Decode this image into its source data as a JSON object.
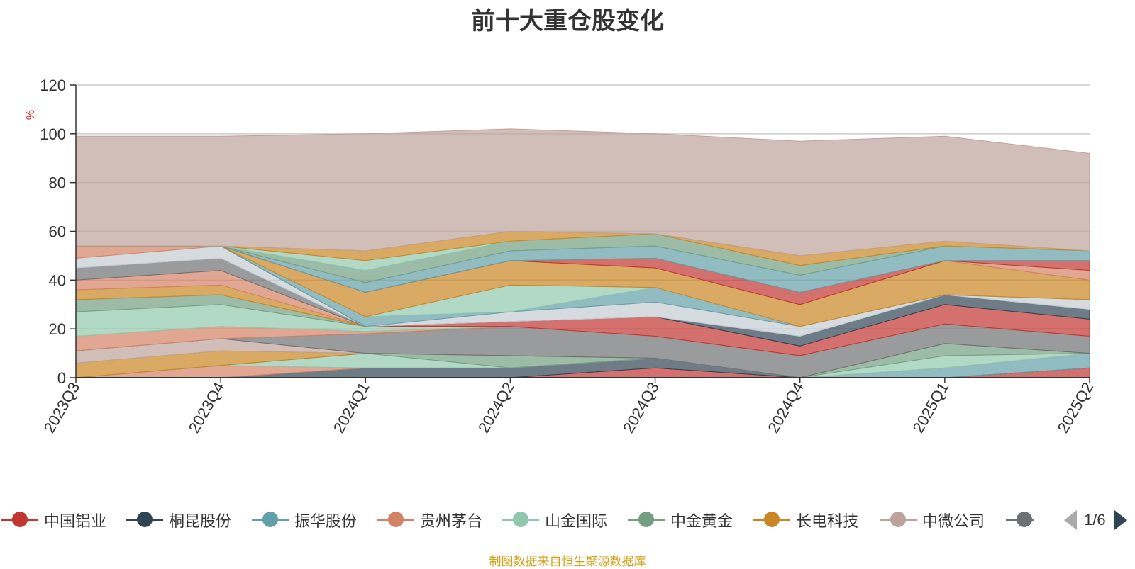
{
  "chart_data": {
    "type": "area",
    "title": "前十大重仓股变化",
    "ylabel": "%",
    "ylim": [
      0,
      120
    ],
    "yticks": [
      0,
      20,
      40,
      60,
      80,
      100,
      120
    ],
    "grid": true,
    "stacked": true,
    "legend_placement": "bottom",
    "categories": [
      "2023Q3",
      "2023Q4",
      "2024Q1",
      "2024Q2",
      "2024Q3",
      "2024Q4",
      "2025Q1",
      "2025Q2"
    ],
    "series": [
      {
        "name": "中国铝业",
        "color": "#c23531",
        "values": [
          0,
          0,
          0,
          0,
          4,
          0,
          0,
          4
        ]
      },
      {
        "name": "桐昆股份",
        "color": "#2f4554",
        "values": [
          0,
          0,
          4,
          4,
          4,
          0,
          0,
          0
        ]
      },
      {
        "name": "振华股份",
        "color": "#61a0a8",
        "values": [
          0,
          0,
          0,
          0,
          0,
          0,
          4,
          6
        ]
      },
      {
        "name": "贵州茅台",
        "color": "#d48265",
        "values": [
          0,
          5,
          0,
          0,
          0,
          0,
          0,
          0
        ]
      },
      {
        "name": "山金国际",
        "color": "#91c7ae",
        "values": [
          0,
          0,
          6,
          0,
          0,
          0,
          5,
          0
        ]
      },
      {
        "name": "中金黄金",
        "color": "#749f83",
        "values": [
          0,
          0,
          0,
          5,
          0,
          0,
          5,
          0
        ]
      },
      {
        "name": "长电科技",
        "color": "#ca8622",
        "values": [
          6,
          6,
          0,
          0,
          0,
          0,
          0,
          0
        ]
      },
      {
        "name": "中微公司",
        "color": "#bda29a",
        "values": [
          5,
          5,
          0,
          0,
          0,
          0,
          0,
          0
        ]
      },
      {
        "color": "#6e7074",
        "values": [
          0,
          0,
          8,
          12,
          9,
          9,
          8,
          7
        ]
      },
      {
        "color": "#d48265",
        "values": [
          6,
          5,
          1,
          0,
          0,
          0,
          0,
          0
        ]
      },
      {
        "color": "#91c7ae",
        "values": [
          10,
          9,
          2,
          0,
          0,
          0,
          0,
          0
        ]
      },
      {
        "color": "#749f83",
        "values": [
          5,
          4,
          0,
          0,
          0,
          0,
          0,
          0
        ]
      },
      {
        "color": "#ca8622",
        "values": [
          4,
          4,
          0,
          0,
          0,
          0,
          0,
          0
        ]
      },
      {
        "color": "#d48265",
        "values": [
          4,
          6,
          0,
          0,
          0,
          0,
          0,
          0
        ]
      },
      {
        "color": "#6e7074",
        "values": [
          5,
          5,
          0,
          0,
          0,
          0,
          0,
          0
        ]
      },
      {
        "color": "#c4ccd3",
        "values": [
          4,
          5,
          0,
          0,
          0,
          0,
          0,
          0
        ]
      },
      {
        "color": "#d48265",
        "values": [
          5,
          0,
          0,
          0,
          0,
          0,
          0,
          0
        ]
      },
      {
        "color": "#c23531",
        "values": [
          0,
          0,
          0,
          2,
          8,
          4,
          8,
          7
        ]
      },
      {
        "color": "#2f4554",
        "values": [
          0,
          0,
          0,
          0,
          0,
          4,
          4,
          4
        ]
      },
      {
        "color": "#c4ccd3",
        "values": [
          0,
          0,
          0,
          4,
          6,
          4,
          0,
          4
        ]
      },
      {
        "color": "#61a0a8",
        "values": [
          0,
          0,
          4,
          0,
          6,
          0,
          0,
          0
        ]
      },
      {
        "color": "#91c7ae",
        "values": [
          0,
          0,
          0,
          11,
          0,
          0,
          0,
          0
        ]
      },
      {
        "color": "#ca8622",
        "values": [
          0,
          0,
          10,
          10,
          8,
          9,
          14,
          8
        ]
      },
      {
        "color": "#d48265",
        "values": [
          0,
          0,
          0,
          0,
          0,
          0,
          0,
          4
        ]
      },
      {
        "color": "#c23531",
        "values": [
          0,
          0,
          0,
          0,
          4,
          5,
          0,
          4
        ]
      },
      {
        "color": "#61a0a8",
        "values": [
          0,
          0,
          4,
          4,
          5,
          7,
          6,
          4
        ]
      },
      {
        "color": "#749f83",
        "values": [
          0,
          0,
          5,
          4,
          5,
          4,
          0,
          0
        ]
      },
      {
        "color": "#91c7ae",
        "values": [
          0,
          0,
          4,
          0,
          0,
          0,
          0,
          0
        ]
      },
      {
        "color": "#ca8622",
        "values": [
          0,
          0,
          4,
          4,
          0,
          4,
          2,
          0
        ]
      },
      {
        "color": "#bda29a",
        "values": [
          45,
          45,
          48,
          42,
          41,
          47,
          43,
          40
        ]
      }
    ]
  },
  "legend": {
    "items": [
      {
        "label": "中国铝业",
        "color": "#c23531"
      },
      {
        "label": "桐昆股份",
        "color": "#2f4554"
      },
      {
        "label": "振华股份",
        "color": "#61a0a8"
      },
      {
        "label": "贵州茅台",
        "color": "#d48265"
      },
      {
        "label": "山金国际",
        "color": "#91c7ae"
      },
      {
        "label": "中金黄金",
        "color": "#749f83"
      },
      {
        "label": "长电科技",
        "color": "#ca8622"
      },
      {
        "label": "中微公司",
        "color": "#bda29a"
      },
      {
        "label": "",
        "color": "#6e7074"
      }
    ],
    "page": "1/6"
  },
  "source": "制图数据来自恒生聚源数据库"
}
